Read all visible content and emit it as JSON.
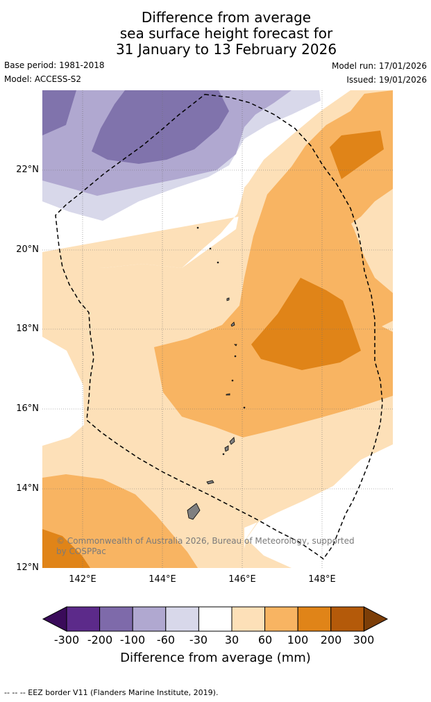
{
  "title_lines": [
    "Difference from average",
    "sea surface height forecast for",
    "31 January to 13 February 2026"
  ],
  "meta": {
    "base_period": "Base period: 1981-2018",
    "model": "Model: ACCESS-S2",
    "model_run": "Model run: 17/01/2026",
    "issued": "Issued: 19/01/2026"
  },
  "axes": {
    "lon_ticks": [
      "142°E",
      "144°E",
      "146°E",
      "148°E"
    ],
    "lat_ticks": [
      "22°N",
      "20°N",
      "18°N",
      "16°N",
      "14°N",
      "12°N"
    ]
  },
  "copyright": "© Commonwealth of Australia 2026, Bureau of Meteorology, supported by COSPPac",
  "colorbar": {
    "labels": [
      "-300",
      "-200",
      "-100",
      "-60",
      "-30",
      "30",
      "60",
      "100",
      "200",
      "300"
    ],
    "colors": [
      "#3a0b5a",
      "#5c2a8a",
      "#7e6aaa",
      "#b0a8d0",
      "#d8d8ea",
      "#ffffff",
      "#fde0b8",
      "#f8b462",
      "#e08418",
      "#b45a0a",
      "#7c3e08"
    ],
    "title": "Difference from average (mm)"
  },
  "footer": "--  --  -- EEZ border V11 (Flanders Marine Institute, 2019)."
}
